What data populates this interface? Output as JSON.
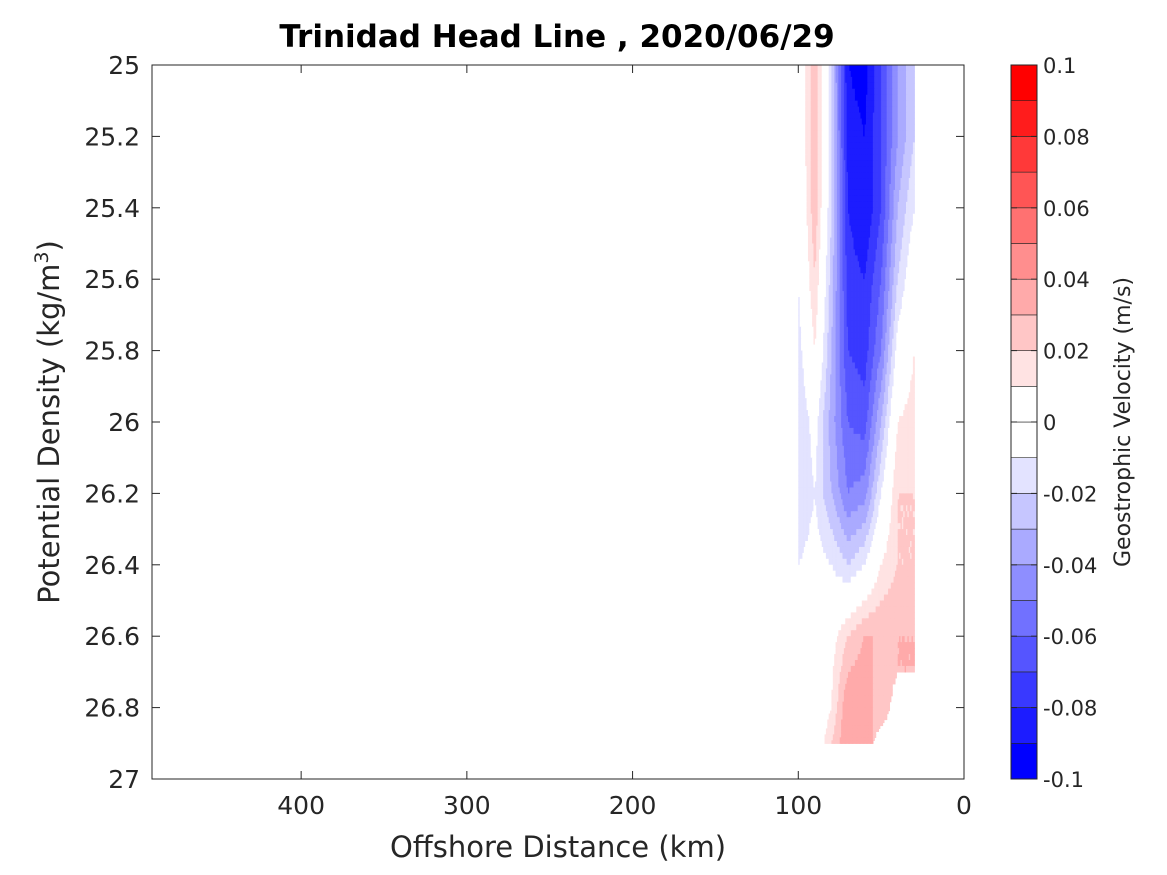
{
  "chart_data": {
    "type": "heatmap",
    "title": "Trinidad Head Line , 2020/06/29",
    "xlabel": "Offshore Distance (km)",
    "ylabel": "Potential Density (kg/m",
    "ylabel_sup": "3",
    "ylabel_tail": ")",
    "xlim": [
      490,
      0
    ],
    "ylim": [
      25,
      27
    ],
    "x_reversed": true,
    "y_reversed": true,
    "xticks": [
      400,
      300,
      200,
      100,
      0
    ],
    "xtick_labels": [
      "400",
      "300",
      "200",
      "100",
      "0"
    ],
    "yticks": [
      25,
      25.2,
      25.4,
      25.6,
      25.8,
      26,
      26.2,
      26.4,
      26.6,
      26.8,
      27
    ],
    "ytick_labels": [
      "25",
      "25.2",
      "25.4",
      "25.6",
      "25.8",
      "26",
      "26.2",
      "26.4",
      "26.6",
      "26.8",
      "27"
    ],
    "colorbar": {
      "label": "Geostrophic Velocity (m/s)",
      "range": [
        -0.1,
        0.1
      ],
      "levels": [
        -0.1,
        -0.09,
        -0.08,
        -0.07,
        -0.06,
        -0.05,
        -0.04,
        -0.03,
        -0.02,
        -0.01,
        0,
        0.01,
        0.02,
        0.03,
        0.04,
        0.05,
        0.06,
        0.07,
        0.08,
        0.09,
        0.1
      ],
      "ticks": [
        -0.1,
        -0.08,
        -0.06,
        -0.04,
        -0.02,
        0,
        0.02,
        0.04,
        0.06,
        0.08,
        0.1
      ],
      "tick_labels": [
        "-0.1",
        "-0.08",
        "-0.06",
        "-0.04",
        "-0.02",
        "0",
        "0.02",
        "0.04",
        "0.06",
        "0.08",
        "0.1"
      ],
      "colormap": "blue-white-red",
      "color_low": "#0000ff",
      "color_mid": "#ffffff",
      "color_high": "#ff0000"
    },
    "x": [
      100,
      90,
      80,
      70,
      60,
      50,
      40,
      30
    ],
    "y": [
      25.0,
      25.2,
      25.4,
      25.6,
      25.8,
      26.0,
      26.2,
      26.4,
      26.6,
      26.8,
      26.9
    ],
    "z": [
      [
        -0.005,
        0.03,
        -0.02,
        -0.09,
        -0.095,
        -0.07,
        -0.04,
        -0.02
      ],
      [
        -0.005,
        0.03,
        -0.02,
        -0.085,
        -0.09,
        -0.07,
        -0.04,
        -0.02
      ],
      [
        -0.008,
        0.028,
        -0.02,
        -0.08,
        -0.09,
        -0.07,
        -0.03,
        -0.01
      ],
      [
        -0.01,
        0.02,
        -0.025,
        -0.075,
        -0.08,
        -0.06,
        -0.02,
        0.002
      ],
      [
        -0.015,
        0.01,
        -0.03,
        -0.07,
        -0.075,
        -0.05,
        -0.005,
        0.01
      ],
      [
        -0.02,
        -0.005,
        -0.035,
        -0.06,
        -0.065,
        -0.03,
        0.01,
        0.015
      ],
      [
        -0.02,
        -0.01,
        -0.03,
        -0.05,
        -0.045,
        -0.01,
        0.02,
        0.02
      ],
      [
        -0.01,
        -0.005,
        -0.01,
        -0.02,
        -0.01,
        0.01,
        0.02,
        0.02
      ],
      [
        -0.005,
        -0.005,
        0.005,
        0.02,
        0.03,
        0.03,
        0.03,
        0.03
      ],
      [
        0.005,
        -0.005,
        0.01,
        0.04,
        0.04,
        0.02,
        null,
        null
      ],
      [
        0.01,
        -0.002,
        0.02,
        0.04,
        0.03,
        null,
        null,
        null
      ]
    ]
  }
}
